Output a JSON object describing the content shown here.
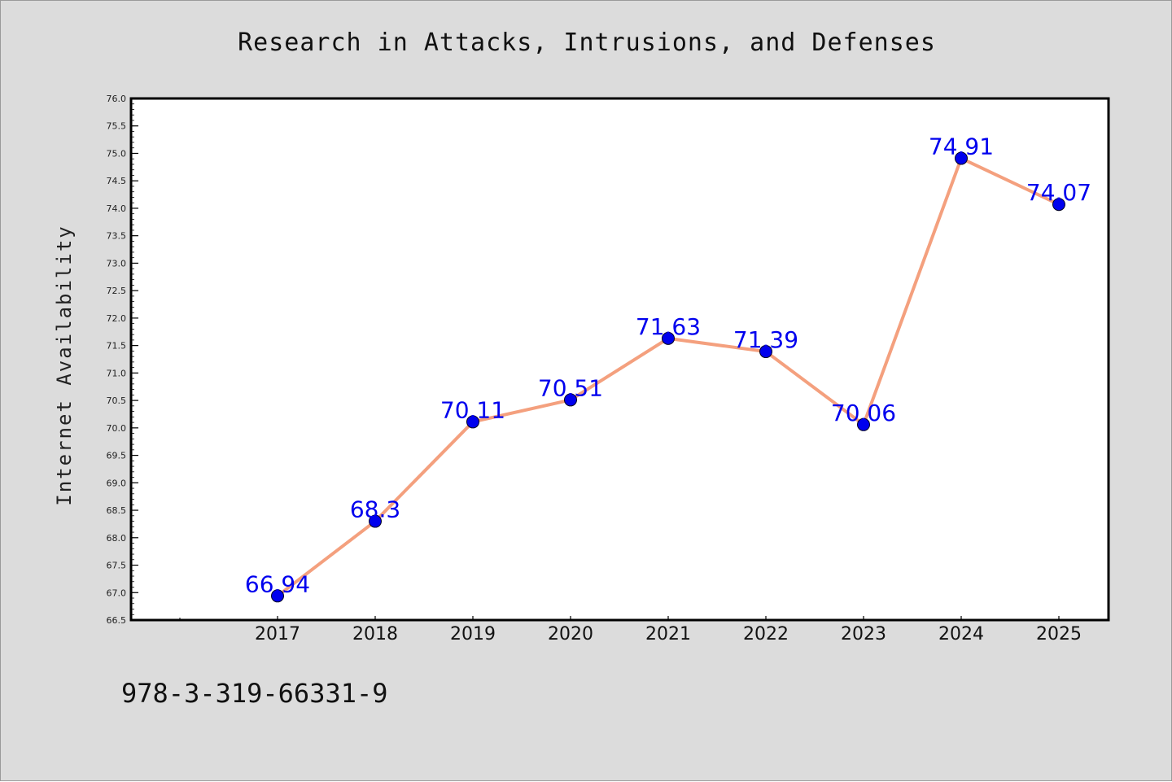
{
  "figure": {
    "title": "Research in Attacks, Intrusions, and Defenses",
    "ylabel": "Internet Availability",
    "footer_text": "978-3-319-66331-9"
  },
  "colors": {
    "background": "#dcdcdc",
    "plot_area": "#ffffff",
    "line": "#f4a07e",
    "marker": "#0000ee",
    "data_label": "#0000ee"
  },
  "chart_data": {
    "type": "line",
    "title": "Research in Attacks, Intrusions, and Defenses",
    "xlabel": "",
    "ylabel": "Internet Availability",
    "x": [
      "2017",
      "2018",
      "2019",
      "2020",
      "2021",
      "2022",
      "2023",
      "2024",
      "2025"
    ],
    "series": [
      {
        "values": [
          66.94,
          68.3,
          70.11,
          70.51,
          71.63,
          71.39,
          70.06,
          74.91,
          74.07
        ],
        "labels": [
          "66.94",
          "68.3",
          "70.11",
          "70.51",
          "71.63",
          "71.39",
          "70.06",
          "74.91",
          "74.07"
        ]
      }
    ],
    "ylim": [
      66.5,
      76.0
    ],
    "y_ticks": [
      "66.5",
      "67.0",
      "67.5",
      "68.0",
      "68.5",
      "69.0",
      "69.5",
      "70.0",
      "70.5",
      "71.0",
      "71.5",
      "72.0",
      "72.5",
      "73.0",
      "73.5",
      "74.0",
      "74.5",
      "75.0",
      "75.5",
      "76.0"
    ],
    "grid": false,
    "legend": "none"
  }
}
